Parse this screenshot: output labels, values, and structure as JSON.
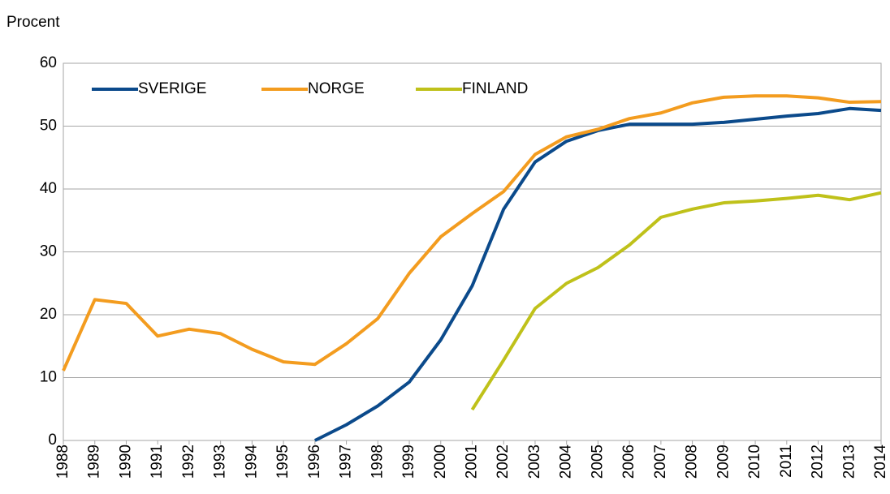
{
  "chart_data": {
    "type": "line",
    "y_label": "Procent",
    "x": [
      1988,
      1989,
      1990,
      1991,
      1992,
      1993,
      1994,
      1995,
      1996,
      1997,
      1998,
      1999,
      2000,
      2001,
      2002,
      2003,
      2004,
      2005,
      2006,
      2007,
      2008,
      2009,
      2010,
      2011,
      2012,
      2013,
      2014
    ],
    "xlim": [
      1988,
      2014
    ],
    "ylim": [
      0,
      60
    ],
    "yticks": [
      0,
      10,
      20,
      30,
      40,
      50,
      60
    ],
    "grid": true,
    "legend": "top-left",
    "series": [
      {
        "name": "SVERIGE",
        "color": "#0b4a8b",
        "values": [
          null,
          null,
          null,
          null,
          null,
          null,
          null,
          null,
          0,
          2.5,
          5.5,
          9.3,
          16.0,
          24.6,
          36.8,
          44.3,
          47.6,
          49.3,
          50.3,
          50.3,
          50.3,
          50.6,
          51.1,
          51.6,
          52.0,
          52.8,
          52.5
        ]
      },
      {
        "name": "NORGE",
        "color": "#f39c1f",
        "values": [
          11.1,
          22.4,
          21.8,
          16.6,
          17.7,
          17.0,
          14.5,
          12.5,
          12.1,
          15.4,
          19.4,
          26.6,
          32.4,
          36.1,
          39.6,
          45.5,
          48.3,
          49.5,
          51.2,
          52.1,
          53.7,
          54.6,
          54.8,
          54.8,
          54.5,
          53.8,
          53.9
        ]
      },
      {
        "name": "FINLAND",
        "color": "#bfc11a",
        "values": [
          null,
          null,
          null,
          null,
          null,
          null,
          null,
          null,
          null,
          null,
          null,
          null,
          null,
          4.9,
          12.8,
          21.0,
          25.0,
          27.5,
          31.1,
          35.5,
          36.8,
          37.8,
          38.1,
          38.5,
          39.0,
          38.3,
          39.4
        ]
      }
    ]
  }
}
